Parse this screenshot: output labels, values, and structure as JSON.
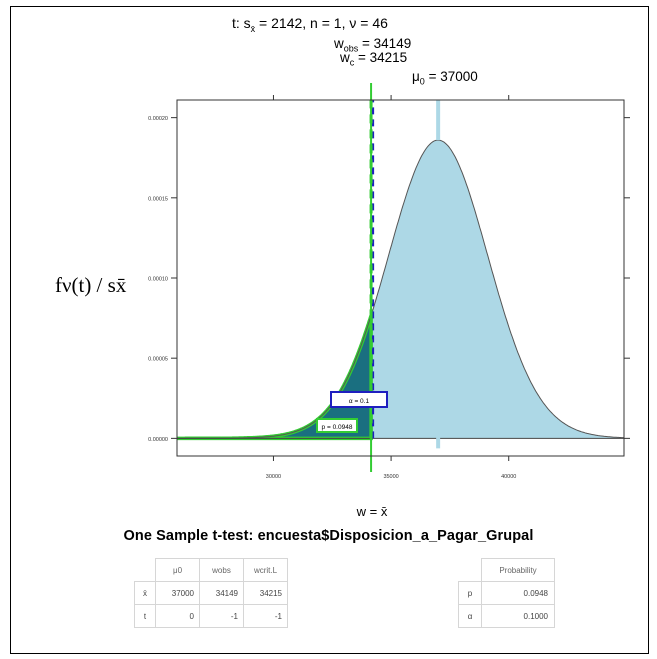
{
  "chart_data": {
    "type": "area",
    "title_lines": {
      "stat": "t: s",
      "stat_sub": "x̄",
      "stat_rest": " = 2142,  n = 1,  ν = 46",
      "wobs": "= 34149",
      "wc": "= 34215",
      "mu0": "= 37000"
    },
    "ylabel": "fν(t) / sx̄",
    "xlabel": "w = x̄",
    "x_ticks": [
      30000,
      35000,
      40000
    ],
    "x_tick_labels": [
      "30000",
      "35000",
      "40000"
    ],
    "y_ticks": [
      0,
      5e-05,
      0.0001,
      0.00015,
      0.0002
    ],
    "y_tick_labels": [
      "0.00000",
      "0.00005",
      "0.00010",
      "0.00015",
      "0.00020"
    ],
    "xlim": [
      25900,
      44900
    ],
    "ylim": [
      -1.1e-05,
      0.000211
    ],
    "distribution": {
      "center": 37000,
      "scale": 2142,
      "df": 46,
      "peak": 0.000186
    },
    "mu0": 37000,
    "w_obs": 34149,
    "w_c": 34215,
    "alpha": 0.1,
    "p_value": 0.0948,
    "alpha_box_label": "α = 0.1",
    "p_box_label": "p = 0.0948",
    "colors": {
      "density_fill": "#add8e6",
      "alpha_region": "#1a6f80",
      "p_region": "#33cc33",
      "crit_line": "#1f1fbf",
      "obs_line": "#33cc33",
      "curve": "#555555"
    }
  },
  "heading": "One Sample t-test: encuesta$Disposicion_a_Pagar_Grupal",
  "table_left": {
    "headers": [
      "μ0",
      "wobs",
      "wcrit.L"
    ],
    "rows": [
      {
        "label": "x̄",
        "values": [
          "37000",
          "34149",
          "34215"
        ]
      },
      {
        "label": "t",
        "values": [
          "0",
          "-1",
          "-1"
        ]
      }
    ]
  },
  "table_right": {
    "header": "Probability",
    "rows": [
      {
        "label": "p",
        "value": "0.0948"
      },
      {
        "label": "α",
        "value": "0.1000"
      }
    ]
  }
}
